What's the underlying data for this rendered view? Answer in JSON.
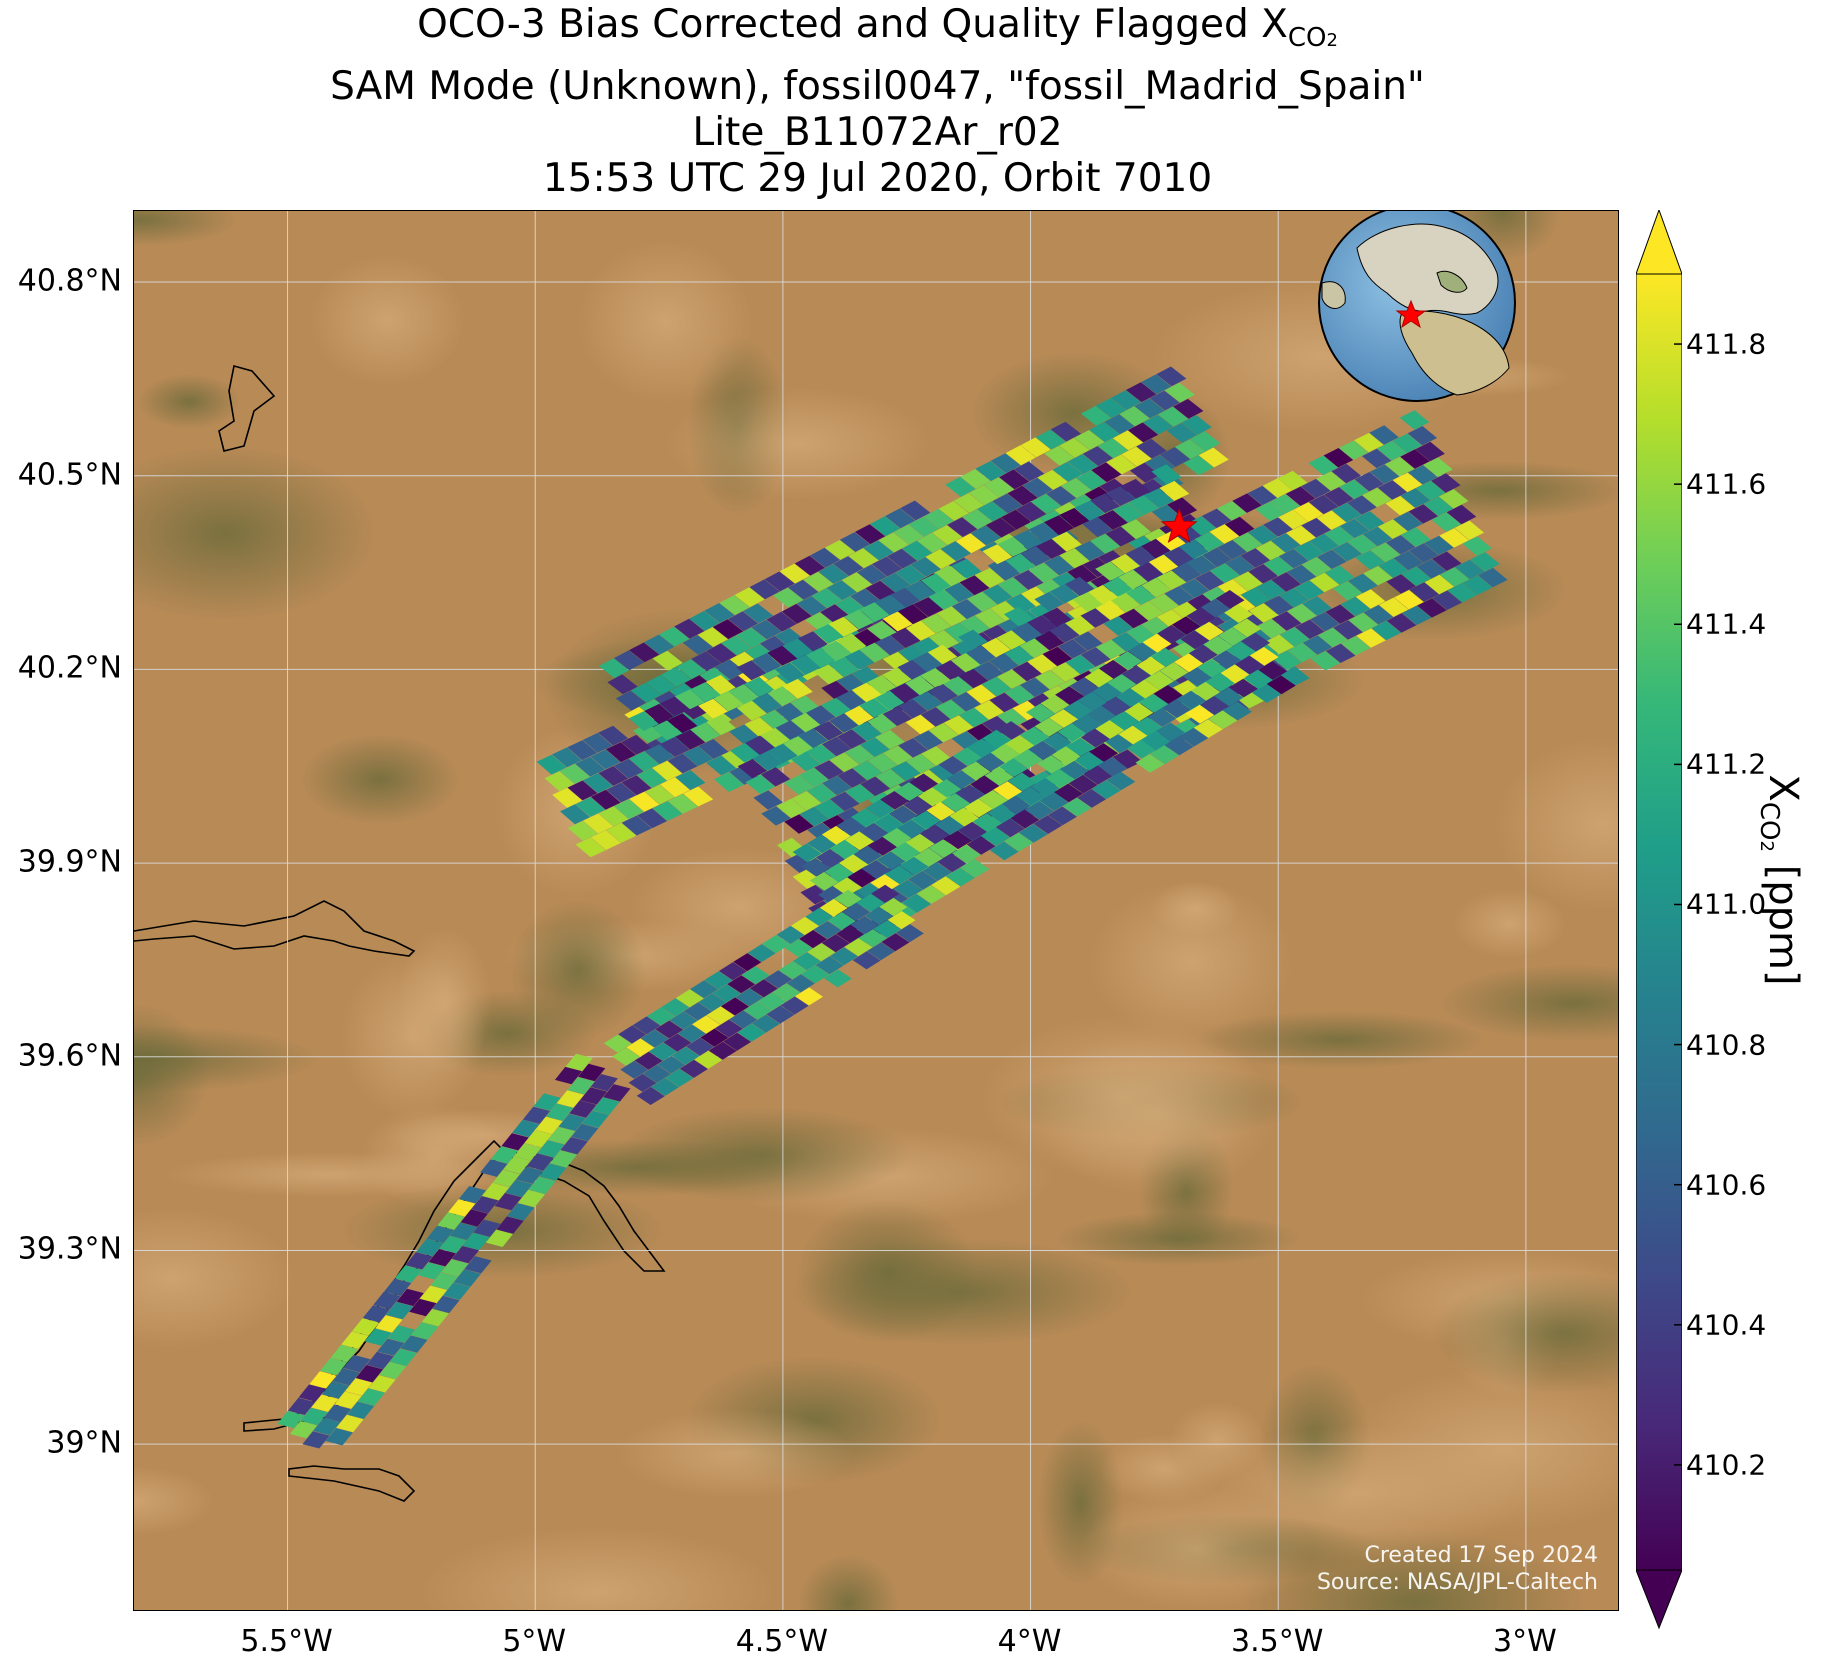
{
  "title": {
    "line1_prefix": "OCO-3 Bias Corrected and Quality Flagged X",
    "line1_sub": "CO",
    "line1_subsub": "2",
    "line2": "SAM Mode (Unknown), fossil0047, \"fossil_Madrid_Spain\"",
    "line3": "Lite_B11072Ar_r02",
    "line4": "15:53 UTC 29 Jul 2020, Orbit 7010"
  },
  "map": {
    "lat_ticks": [
      "40.8°N",
      "40.5°N",
      "40.2°N",
      "39.9°N",
      "39.6°N",
      "39.3°N",
      "39°N"
    ],
    "lon_ticks": [
      "5.5°W",
      "5°W",
      "4.5°W",
      "4°W",
      "3.5°W",
      "3°W"
    ],
    "lat_values": [
      40.8,
      40.5,
      40.2,
      39.9,
      39.6,
      39.3,
      39.0
    ],
    "lon_values": [
      -5.5,
      -5.0,
      -4.5,
      -4.0,
      -3.5,
      -3.0
    ],
    "extent": {
      "lon_min": -5.81,
      "lon_max": -2.81,
      "lat_min": 38.74,
      "lat_max": 40.91
    },
    "target_marker": {
      "icon": "red-star-icon",
      "lon": -3.7,
      "lat": 40.42,
      "color": "#ff0000"
    },
    "inset_globe": {
      "icon": "globe-inset-icon",
      "marker": "red-star-icon"
    },
    "credit_line1": "Created 17 Sep 2024",
    "credit_line2": "Source: NASA/JPL-Caltech",
    "colors": {
      "terrain": "#b88a56",
      "grid": "#d9d9d9",
      "coastline": "#000000"
    }
  },
  "colorbar": {
    "label_prefix": "X",
    "label_sub": "CO",
    "label_subsub": "2",
    "label_suffix": " [ppm]",
    "ticks": [
      "411.8",
      "411.6",
      "411.4",
      "411.2",
      "411.0",
      "410.8",
      "410.6",
      "410.4",
      "410.2"
    ],
    "tick_values": [
      411.8,
      411.6,
      411.4,
      411.2,
      411.0,
      410.8,
      410.6,
      410.4,
      410.2
    ],
    "vmin": 410.05,
    "vmax": 411.9,
    "extend": "both",
    "colormap": "viridis",
    "stops": [
      "#440154",
      "#482878",
      "#3e4989",
      "#31688e",
      "#26828e",
      "#1f9e89",
      "#35b779",
      "#6ece58",
      "#b5de2b",
      "#fde725"
    ]
  },
  "chart_data": {
    "type": "scatter",
    "title": "OCO-3 Bias Corrected and Quality Flagged XCO2",
    "xlabel": "",
    "ylabel": "",
    "xlim": [
      -5.81,
      -2.81
    ],
    "ylim": [
      38.74,
      40.91
    ],
    "value_range": [
      410.05,
      411.9
    ],
    "swaths": [
      {
        "lon0": -4.82,
        "lat0": 40.13,
        "lon1": -3.65,
        "lat1": 40.6,
        "half_width_deg": 0.085
      },
      {
        "lon0": -4.95,
        "lat0": 39.98,
        "lon1": -3.68,
        "lat1": 40.44,
        "half_width_deg": 0.085
      },
      {
        "lon0": -4.52,
        "lat0": 39.94,
        "lon1": -3.13,
        "lat1": 40.47,
        "half_width_deg": 0.15
      },
      {
        "lon0": -4.42,
        "lat0": 39.84,
        "lon1": -3.55,
        "lat1": 40.24,
        "half_width_deg": 0.09
      },
      {
        "lon0": -4.82,
        "lat0": 39.57,
        "lon1": -4.26,
        "lat1": 39.84,
        "half_width_deg": 0.06
      },
      {
        "lon0": -5.47,
        "lat0": 39.0,
        "lon1": -4.86,
        "lat1": 39.58,
        "half_width_deg": 0.05
      }
    ],
    "target": {
      "name": "fossil_Madrid_Spain",
      "lon": -3.7,
      "lat": 40.42
    }
  }
}
